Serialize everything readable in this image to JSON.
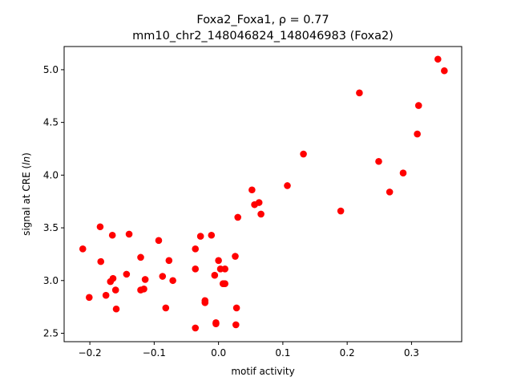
{
  "chart_data": {
    "type": "scatter",
    "title_line1": "Foxa2_Foxa1, ρ = 0.77",
    "title_line2": "mm10_chr2_148046824_148046983 (Foxa2)",
    "xlabel": "motif activity",
    "ylabel": "signal at CRE (ln)",
    "xlim": [
      -0.24,
      0.378
    ],
    "ylim": [
      2.42,
      5.22
    ],
    "xticks": [
      -0.2,
      -0.1,
      0.0,
      0.1,
      0.2,
      0.3
    ],
    "xtick_labels": [
      "−0.2",
      "−0.1",
      "0.0",
      "0.1",
      "0.2",
      "0.3"
    ],
    "yticks": [
      2.5,
      3.0,
      3.5,
      4.0,
      4.5,
      5.0
    ],
    "ytick_labels": [
      "2.5",
      "3.0",
      "3.5",
      "4.0",
      "4.5",
      "5.0"
    ],
    "grid": false,
    "marker_color": "#ff0000",
    "points": [
      {
        "x": -0.211,
        "y": 3.3
      },
      {
        "x": -0.201,
        "y": 2.84
      },
      {
        "x": -0.184,
        "y": 3.51
      },
      {
        "x": -0.183,
        "y": 3.18
      },
      {
        "x": -0.175,
        "y": 2.86
      },
      {
        "x": -0.168,
        "y": 2.99
      },
      {
        "x": -0.165,
        "y": 3.43
      },
      {
        "x": -0.164,
        "y": 3.02
      },
      {
        "x": -0.16,
        "y": 2.91
      },
      {
        "x": -0.159,
        "y": 2.73
      },
      {
        "x": -0.143,
        "y": 3.06
      },
      {
        "x": -0.139,
        "y": 3.44
      },
      {
        "x": -0.121,
        "y": 3.22
      },
      {
        "x": -0.121,
        "y": 2.91
      },
      {
        "x": -0.116,
        "y": 2.92
      },
      {
        "x": -0.114,
        "y": 3.01
      },
      {
        "x": -0.093,
        "y": 3.38
      },
      {
        "x": -0.087,
        "y": 3.04
      },
      {
        "x": -0.082,
        "y": 2.74
      },
      {
        "x": -0.077,
        "y": 3.19
      },
      {
        "x": -0.071,
        "y": 3.0
      },
      {
        "x": -0.036,
        "y": 3.3
      },
      {
        "x": -0.036,
        "y": 3.11
      },
      {
        "x": -0.036,
        "y": 2.55
      },
      {
        "x": -0.028,
        "y": 3.42
      },
      {
        "x": -0.021,
        "y": 2.81
      },
      {
        "x": -0.021,
        "y": 2.79
      },
      {
        "x": -0.011,
        "y": 3.43
      },
      {
        "x": -0.006,
        "y": 3.05
      },
      {
        "x": -0.004,
        "y": 2.6
      },
      {
        "x": -0.004,
        "y": 2.59
      },
      {
        "x": 0.0,
        "y": 3.19
      },
      {
        "x": 0.003,
        "y": 3.11
      },
      {
        "x": 0.007,
        "y": 2.97
      },
      {
        "x": 0.01,
        "y": 2.97
      },
      {
        "x": 0.01,
        "y": 3.11
      },
      {
        "x": 0.026,
        "y": 3.23
      },
      {
        "x": 0.027,
        "y": 2.58
      },
      {
        "x": 0.028,
        "y": 2.74
      },
      {
        "x": 0.03,
        "y": 3.6
      },
      {
        "x": 0.052,
        "y": 3.86
      },
      {
        "x": 0.056,
        "y": 3.72
      },
      {
        "x": 0.063,
        "y": 3.74
      },
      {
        "x": 0.066,
        "y": 3.63
      },
      {
        "x": 0.107,
        "y": 3.9
      },
      {
        "x": 0.132,
        "y": 4.2
      },
      {
        "x": 0.19,
        "y": 3.66
      },
      {
        "x": 0.219,
        "y": 4.78
      },
      {
        "x": 0.249,
        "y": 4.13
      },
      {
        "x": 0.266,
        "y": 3.84
      },
      {
        "x": 0.287,
        "y": 4.02
      },
      {
        "x": 0.309,
        "y": 4.39
      },
      {
        "x": 0.311,
        "y": 4.66
      },
      {
        "x": 0.341,
        "y": 5.1
      },
      {
        "x": 0.351,
        "y": 4.99
      }
    ]
  }
}
